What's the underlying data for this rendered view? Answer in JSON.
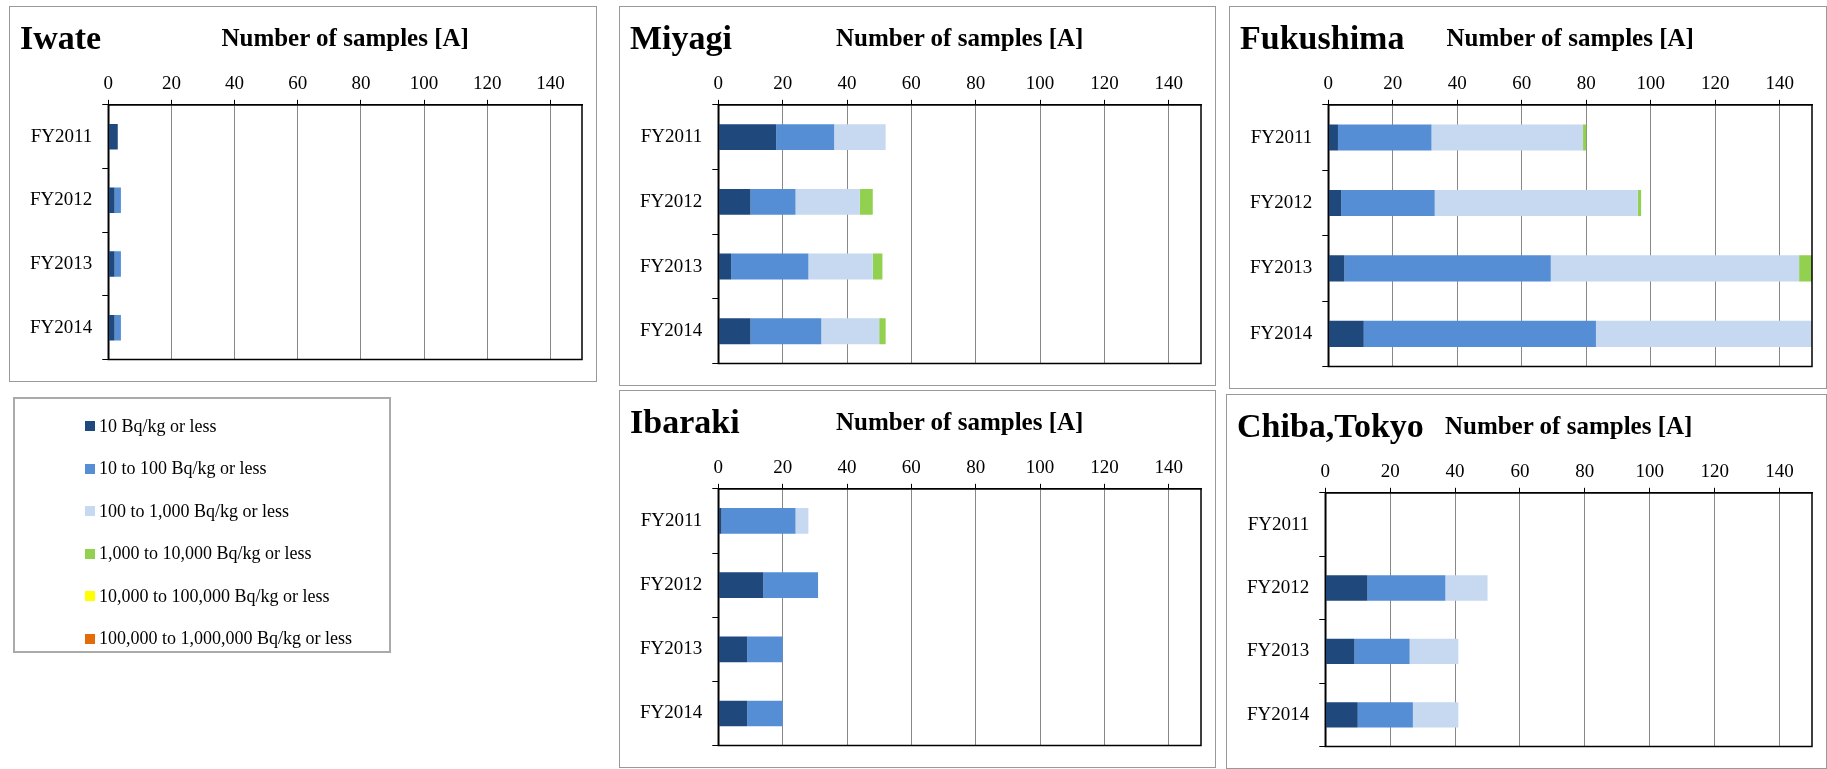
{
  "chart_data": [
    {
      "type": "bar",
      "orientation": "horizontal",
      "stacked": true,
      "title": "Iwate",
      "xlabel": "Number of samples [A]",
      "categories": [
        "FY2011",
        "FY2012",
        "FY2013",
        "FY2014"
      ],
      "xlim": [
        0,
        150
      ],
      "xticks": [
        0,
        20,
        40,
        60,
        80,
        100,
        120,
        140
      ],
      "grid": "x",
      "legend": "bottom",
      "series": [
        {
          "name": "10 Bq/kg or less",
          "color": "#1f497d",
          "values": [
            3,
            2,
            2,
            2
          ]
        },
        {
          "name": "10 to 100 Bq/kg or less",
          "color": "#558ed5",
          "values": [
            0,
            2,
            2,
            2
          ]
        },
        {
          "name": "100 to 1,000 Bq/kg or less",
          "color": "#c6d9f1",
          "values": [
            0,
            0,
            0,
            0
          ]
        },
        {
          "name": "1,000 to 10,000 Bq/kg or less",
          "color": "#92d050",
          "values": [
            0,
            0,
            0,
            0
          ]
        },
        {
          "name": "10,000 to 100,000 Bq/kg or less",
          "color": "#ffff00",
          "values": [
            0,
            0,
            0,
            0
          ]
        },
        {
          "name": "100,000 to 1,000,000 Bq/kg or less",
          "color": "#e36c09",
          "values": [
            0,
            0,
            0,
            0
          ]
        }
      ]
    },
    {
      "type": "bar",
      "orientation": "horizontal",
      "stacked": true,
      "title": "Miyagi",
      "xlabel": "Number of samples [A]",
      "categories": [
        "FY2011",
        "FY2012",
        "FY2013",
        "FY2014"
      ],
      "xlim": [
        0,
        150
      ],
      "xticks": [
        0,
        20,
        40,
        60,
        80,
        100,
        120,
        140
      ],
      "grid": "x",
      "series": [
        {
          "color": "#1f497d",
          "values": [
            18,
            10,
            4,
            10
          ]
        },
        {
          "color": "#558ed5",
          "values": [
            18,
            14,
            24,
            22
          ]
        },
        {
          "color": "#c6d9f1",
          "values": [
            16,
            20,
            20,
            18
          ]
        },
        {
          "color": "#92d050",
          "values": [
            0,
            4,
            3,
            2
          ]
        },
        {
          "color": "#ffff00",
          "values": [
            0,
            0,
            0,
            0
          ]
        },
        {
          "color": "#e36c09",
          "values": [
            0,
            0,
            0,
            0
          ]
        }
      ]
    },
    {
      "type": "bar",
      "orientation": "horizontal",
      "stacked": true,
      "title": "Fukushima",
      "xlabel": "Number of samples [A]",
      "categories": [
        "FY2011",
        "FY2012",
        "FY2013",
        "FY2014"
      ],
      "xlim": [
        0,
        150
      ],
      "xticks": [
        0,
        20,
        40,
        60,
        80,
        100,
        120,
        140
      ],
      "grid": "x",
      "series": [
        {
          "color": "#1f497d",
          "values": [
            3,
            4,
            5,
            11
          ]
        },
        {
          "color": "#558ed5",
          "values": [
            29,
            29,
            64,
            72
          ]
        },
        {
          "color": "#c6d9f1",
          "values": [
            47,
            63,
            77,
            67
          ]
        },
        {
          "color": "#92d050",
          "values": [
            1,
            1,
            4,
            0
          ]
        },
        {
          "color": "#ffff00",
          "values": [
            0,
            0,
            0,
            0
          ]
        },
        {
          "color": "#e36c09",
          "values": [
            0,
            0,
            0,
            0
          ]
        }
      ]
    },
    {
      "type": "bar",
      "orientation": "horizontal",
      "stacked": true,
      "title": "Ibaraki",
      "xlabel": "Number of samples [A]",
      "categories": [
        "FY2011",
        "FY2012",
        "FY2013",
        "FY2014"
      ],
      "xlim": [
        0,
        150
      ],
      "xticks": [
        0,
        20,
        40,
        60,
        80,
        100,
        120,
        140
      ],
      "grid": "x",
      "series": [
        {
          "color": "#1f497d",
          "values": [
            1,
            14,
            9,
            9
          ]
        },
        {
          "color": "#558ed5",
          "values": [
            23,
            17,
            11,
            11
          ]
        },
        {
          "color": "#c6d9f1",
          "values": [
            4,
            0,
            0,
            0
          ]
        },
        {
          "color": "#92d050",
          "values": [
            0,
            0,
            0,
            0
          ]
        },
        {
          "color": "#ffff00",
          "values": [
            0,
            0,
            0,
            0
          ]
        },
        {
          "color": "#e36c09",
          "values": [
            0,
            0,
            0,
            0
          ]
        }
      ]
    },
    {
      "type": "bar",
      "orientation": "horizontal",
      "stacked": true,
      "title": "Chiba,Tokyo",
      "xlabel": "Number of samples [A]",
      "categories": [
        "FY2011",
        "FY2012",
        "FY2013",
        "FY2014"
      ],
      "xlim": [
        0,
        150
      ],
      "xticks": [
        0,
        20,
        40,
        60,
        80,
        100,
        120,
        140
      ],
      "grid": "x",
      "series": [
        {
          "color": "#1f497d",
          "values": [
            null,
            13,
            9,
            10
          ]
        },
        {
          "color": "#558ed5",
          "values": [
            null,
            24,
            17,
            17
          ]
        },
        {
          "color": "#c6d9f1",
          "values": [
            null,
            13,
            15,
            14
          ]
        },
        {
          "color": "#92d050",
          "values": [
            null,
            0,
            0,
            0
          ]
        },
        {
          "color": "#ffff00",
          "values": [
            null,
            0,
            0,
            0
          ]
        },
        {
          "color": "#e36c09",
          "values": [
            null,
            0,
            0,
            0
          ]
        }
      ]
    }
  ]
}
